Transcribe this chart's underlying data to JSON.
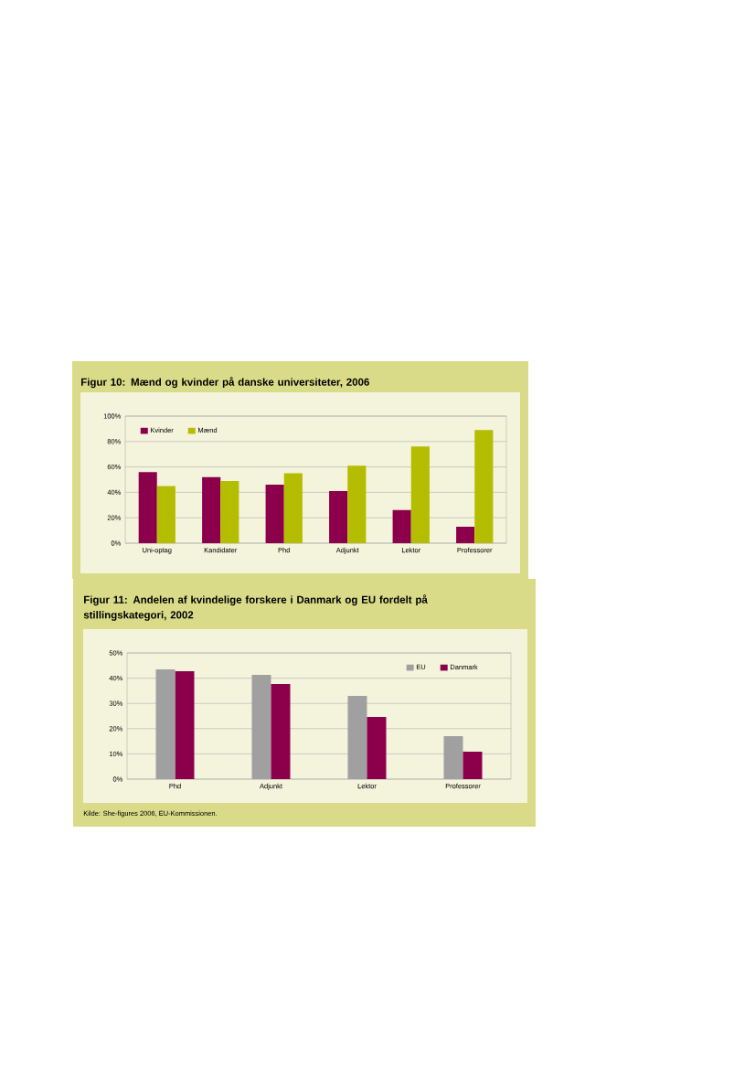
{
  "chart_data": [
    {
      "type": "bar",
      "title": "Figur 10: Mænd og kvinder på danske universiteter, 2006",
      "categories": [
        "Uni-optag",
        "Kandidater",
        "Phd",
        "Adjunkt",
        "Lektor",
        "Professorer"
      ],
      "series": [
        {
          "name": "Kvinder",
          "color": "#8c004b",
          "values": [
            56,
            52,
            46,
            41,
            26,
            13
          ]
        },
        {
          "name": "Mænd",
          "color": "#b5bd00",
          "values": [
            45,
            49,
            55,
            61,
            76,
            89
          ]
        }
      ],
      "ylim": [
        0,
        100
      ],
      "yticks": [
        {
          "value": 0,
          "label": "0%"
        },
        {
          "value": 20,
          "label": "20%"
        },
        {
          "value": 40,
          "label": "40%"
        },
        {
          "value": 60,
          "label": "60%"
        },
        {
          "value": 80,
          "label": "80%"
        },
        {
          "value": 100,
          "label": "100%"
        }
      ],
      "grid": "y",
      "legend": "top left"
    },
    {
      "type": "bar",
      "title": "Figur 11: Andelen af kvindelige forskere i Danmark og EU fordelt på stillingskategori, 2002",
      "categories": [
        "Phd",
        "Adjunkt",
        "Lektor",
        "Professorer"
      ],
      "series": [
        {
          "name": "EU",
          "color": "#a0a0a0",
          "values": [
            43.5,
            41.3,
            33,
            17
          ]
        },
        {
          "name": "Danmark",
          "color": "#8c004b",
          "values": [
            42.8,
            37.7,
            24.6,
            10.9
          ]
        }
      ],
      "ylim": [
        0,
        50
      ],
      "yticks": [
        {
          "value": 0,
          "label": "0%"
        },
        {
          "value": 10,
          "label": "10%"
        },
        {
          "value": 20,
          "label": "20%"
        },
        {
          "value": 30,
          "label": "30%"
        },
        {
          "value": 40,
          "label": "40%"
        },
        {
          "value": 50,
          "label": "50%"
        }
      ],
      "grid": "y",
      "legend": "top right",
      "annotations": [
        "Kilde: She-figures 2006, EU-Kommissionen."
      ]
    }
  ]
}
